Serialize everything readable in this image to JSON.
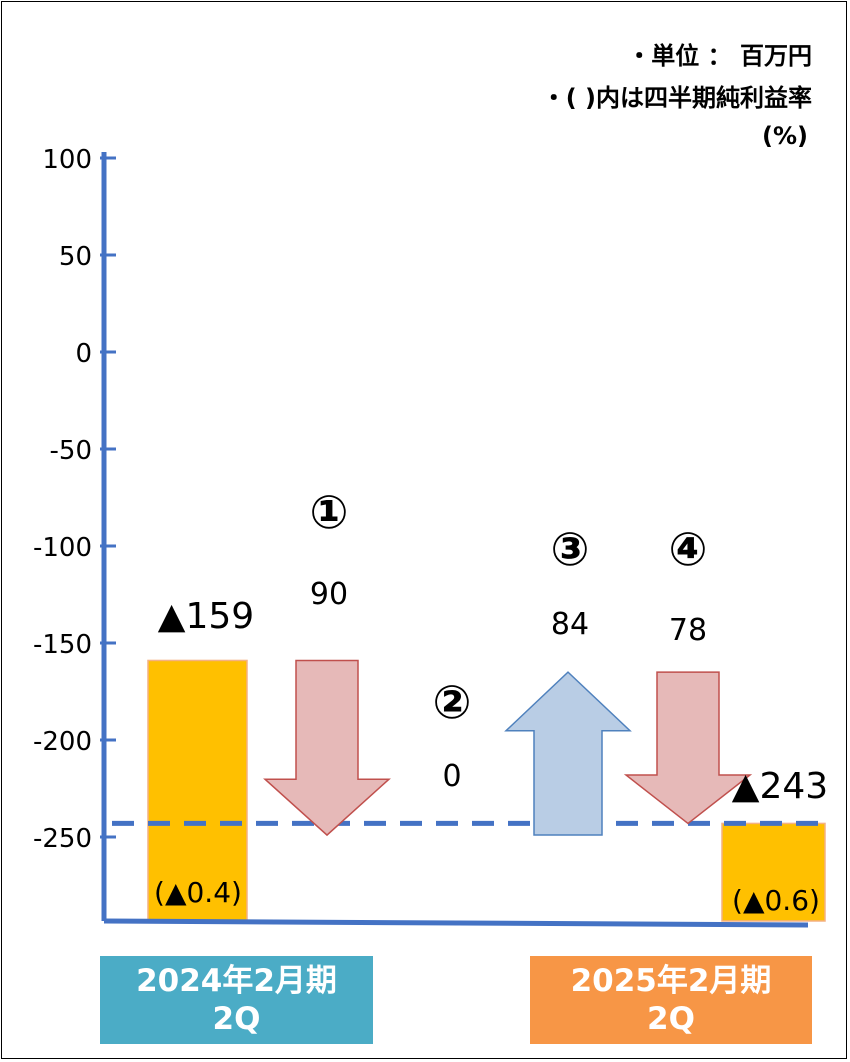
{
  "notes": {
    "unit": "・単位 ： 百万円",
    "rate_note": "・( )内は四半期純利益率",
    "rate_unit": "(%)"
  },
  "colors": {
    "axis": "#4472c4",
    "total_bar": "#ffc000",
    "decrease_arrow": "#e6b9b8",
    "decrease_border": "#c0504d",
    "increase_arrow": "#b9cde5",
    "increase_border": "#4f81bd",
    "cat1_box": "#4bacc6",
    "cat2_box": "#f79646"
  },
  "chart_data": {
    "type": "bar",
    "subtype": "waterfall",
    "ylim": [
      -290,
      100
    ],
    "yticks": [
      100,
      50,
      0,
      -50,
      -100,
      -150,
      -200,
      -250
    ],
    "reference_line": {
      "value": -243,
      "style": "dashed"
    },
    "items": [
      {
        "kind": "total",
        "value": -159,
        "label": "▲159",
        "rate": "(▲0.4)"
      },
      {
        "kind": "decrease",
        "marker": "①",
        "amount": 90,
        "label": "90",
        "from": -159,
        "to": -249
      },
      {
        "kind": "zero",
        "marker": "②",
        "amount": 0,
        "label": "0"
      },
      {
        "kind": "increase",
        "marker": "③",
        "amount": 84,
        "label": "84",
        "from": -249,
        "to": -165
      },
      {
        "kind": "decrease",
        "marker": "④",
        "amount": 78,
        "label": "78",
        "from": -165,
        "to": -243
      },
      {
        "kind": "total",
        "value": -243,
        "label": "▲243",
        "rate": "(▲0.6)"
      }
    ],
    "categories": [
      {
        "line1": "2024年2月期",
        "line2": "2Q"
      },
      {
        "line1": "2025年2月期",
        "line2": "2Q"
      }
    ]
  }
}
